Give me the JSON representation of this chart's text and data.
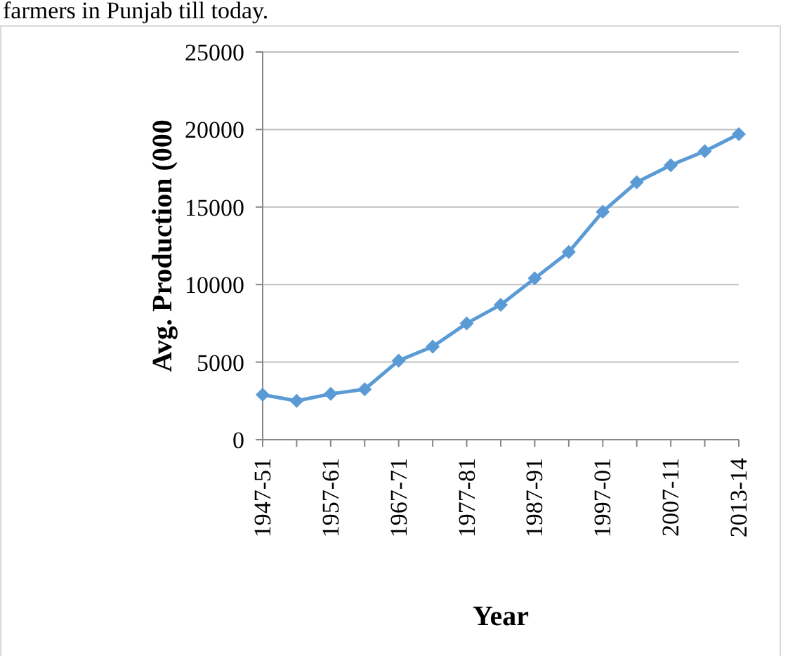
{
  "chart_data": {
    "type": "line",
    "annotations": [
      "farmers in Punjab till today."
    ],
    "ylabel": "Avg. Production (000",
    "xlabel": "Year",
    "categories": [
      "1947-51",
      null,
      "1957-61",
      null,
      "1967-71",
      null,
      "1977-81",
      null,
      "1987-91",
      null,
      "1997-01",
      null,
      "2007-11",
      null,
      "2013-14"
    ],
    "series": [
      {
        "color": "#5b9bd5",
        "values": [
          2900,
          2500,
          2950,
          3250,
          5100,
          6000,
          7500,
          8700,
          10400,
          12100,
          14700,
          16600,
          17700,
          18600,
          19700
        ]
      }
    ],
    "ylim": [
      0,
      25000
    ],
    "yticks": [
      0,
      5000,
      10000,
      15000,
      20000,
      25000
    ],
    "grid": "y",
    "marker": "diamond",
    "line_style": "solid"
  }
}
